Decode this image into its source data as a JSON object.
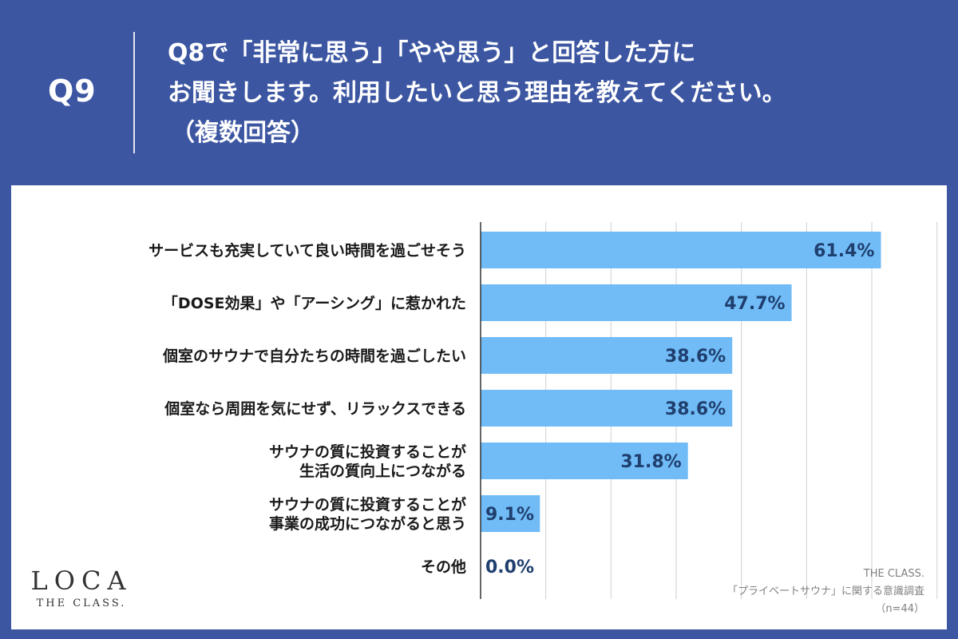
{
  "header": {
    "qnum": "Q9",
    "title_lines": [
      "Q8で「非常に思う」「やや思う」と回答した方に",
      "お聞きします。利用したいと思う理由を教えてください。",
      "（複数回答）"
    ]
  },
  "logo": {
    "main": "LOCA",
    "sub": "THE CLASS."
  },
  "source": {
    "lines": [
      "THE CLASS.",
      "「プライベートサウナ」に関する意識調査",
      "（n=44）"
    ]
  },
  "colors": {
    "header_bg": "#3c56a2",
    "bar": "#71bcf7",
    "value_text": "#1f3f6e",
    "gridline": "#cfcfcf"
  },
  "chart_data": {
    "type": "bar",
    "orientation": "horizontal",
    "categories": [
      [
        "サービスも充実していて良い時間を過ごせそう"
      ],
      [
        "「DOSE効果」や「アーシング」に惹かれた"
      ],
      [
        "個室のサウナで自分たちの時間を過ごしたい"
      ],
      [
        "個室なら周囲を気にせず、リラックスできる"
      ],
      [
        "サウナの質に投資することが",
        "生活の質向上につながる"
      ],
      [
        "サウナの質に投資することが",
        "事業の成功につながると思う"
      ],
      [
        "その他"
      ]
    ],
    "values": [
      61.4,
      47.7,
      38.6,
      38.6,
      31.8,
      9.1,
      0.0
    ],
    "value_labels": [
      "61.4%",
      "47.7%",
      "38.6%",
      "38.6%",
      "31.8%",
      "9.1%",
      "0.0%"
    ],
    "xlim": [
      0,
      70
    ],
    "grid": true,
    "gridline_values": [
      10,
      20,
      30,
      40,
      50,
      60,
      70
    ]
  }
}
